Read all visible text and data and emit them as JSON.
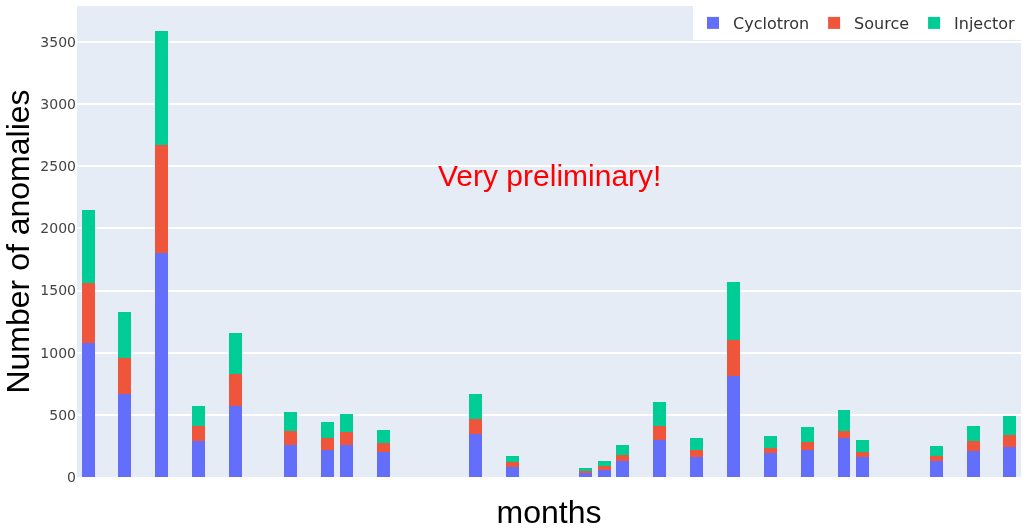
{
  "chart_data": {
    "type": "bar",
    "stacked": true,
    "xlabel": "months",
    "ylabel": "Number of anomalies",
    "categories": [
      null,
      null,
      null,
      null,
      null,
      null,
      null,
      null,
      null,
      null,
      null,
      null,
      null,
      null,
      null,
      null,
      null,
      null,
      null,
      null,
      null,
      null,
      null,
      null,
      null,
      null,
      null,
      null,
      null,
      null,
      null,
      null,
      null,
      null,
      null,
      null,
      null,
      null,
      null,
      null,
      null,
      null,
      null,
      null,
      null,
      null,
      null,
      null,
      null,
      null,
      null
    ],
    "series": [
      {
        "name": "Cyclotron",
        "color": "#636efa",
        "values": [
          1080,
          null,
          670,
          null,
          1800,
          null,
          290,
          null,
          570,
          null,
          null,
          260,
          null,
          220,
          260,
          null,
          200,
          null,
          null,
          null,
          null,
          350,
          null,
          80,
          null,
          null,
          null,
          30,
          60,
          130,
          null,
          300,
          null,
          160,
          null,
          810,
          null,
          190,
          null,
          220,
          null,
          310,
          160,
          null,
          null,
          null,
          130,
          null,
          210,
          null,
          240
        ]
      },
      {
        "name": "Source",
        "color": "#ef553b",
        "values": [
          480,
          null,
          290,
          null,
          870,
          null,
          120,
          null,
          260,
          null,
          null,
          110,
          null,
          90,
          100,
          null,
          70,
          null,
          null,
          null,
          null,
          120,
          null,
          40,
          null,
          null,
          null,
          20,
          30,
          50,
          null,
          110,
          null,
          60,
          null,
          290,
          null,
          40,
          null,
          60,
          null,
          60,
          40,
          null,
          null,
          null,
          40,
          null,
          80,
          null,
          100
        ]
      },
      {
        "name": "Injector",
        "color": "#00cc96",
        "values": [
          590,
          null,
          370,
          null,
          920,
          null,
          160,
          null,
          330,
          null,
          null,
          150,
          null,
          130,
          150,
          null,
          110,
          null,
          null,
          null,
          null,
          200,
          null,
          50,
          null,
          null,
          null,
          20,
          40,
          80,
          null,
          190,
          null,
          90,
          null,
          470,
          null,
          100,
          null,
          120,
          null,
          170,
          100,
          null,
          null,
          null,
          80,
          null,
          120,
          null,
          150
        ]
      }
    ],
    "ylim": [
      0,
      3790
    ],
    "yticks": [
      0,
      500,
      1000,
      1500,
      2000,
      2500,
      3000,
      3500
    ],
    "grid": "y",
    "legend": "top right",
    "annotations": [
      "Very preliminary!"
    ]
  }
}
